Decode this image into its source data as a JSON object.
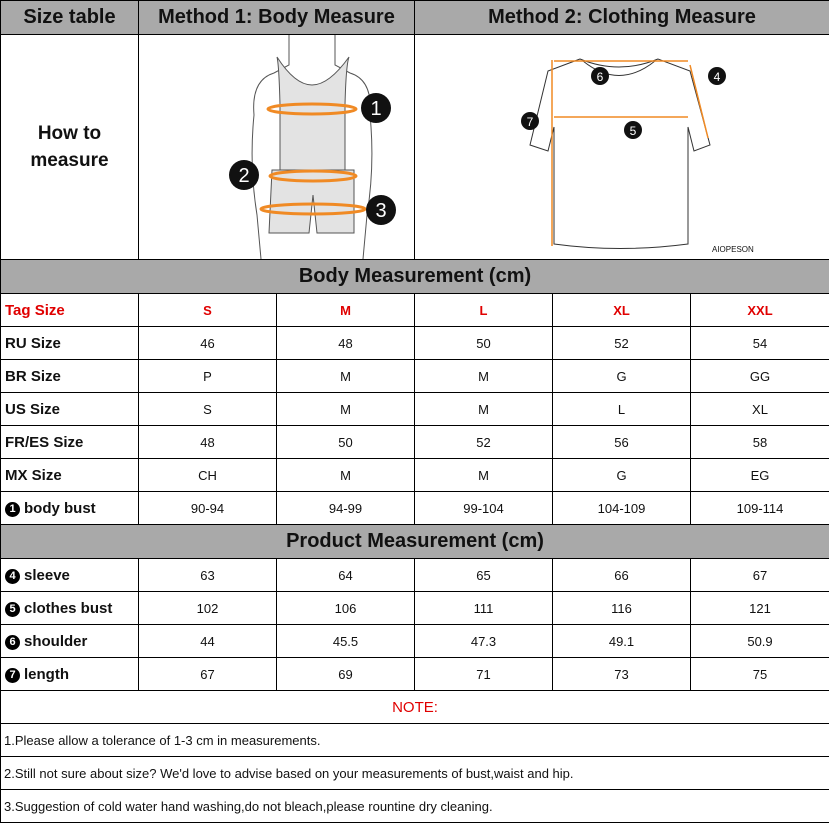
{
  "header": {
    "col0": "Size table",
    "method1": "Method 1: Body  Measure",
    "method2": "Method 2: Clothing Measure"
  },
  "how_to": {
    "label_line1": "How to",
    "label_line2": "measure",
    "body_markers": [
      "1",
      "2",
      "3"
    ],
    "clothing_markers": [
      "4",
      "5",
      "6",
      "7"
    ],
    "brand": "AIOPESON"
  },
  "colors": {
    "accent": "#f08a24",
    "header_gray": "#a9a9a9",
    "tag_red": "#e00000"
  },
  "body_section": {
    "title": "Body Measurement (cm)",
    "tag_row": {
      "label": "Tag Size",
      "values": [
        "S",
        "M",
        "L",
        "XL",
        "XXL"
      ]
    },
    "rows": [
      {
        "label": "RU Size",
        "values": [
          "46",
          "48",
          "50",
          "52",
          "54"
        ]
      },
      {
        "label": "BR Size",
        "values": [
          "P",
          "M",
          "M",
          "G",
          "GG"
        ]
      },
      {
        "label": "US Size",
        "values": [
          "S",
          "M",
          "M",
          "L",
          "XL"
        ]
      },
      {
        "label": "FR/ES Size",
        "values": [
          "48",
          "50",
          "52",
          "56",
          "58"
        ]
      },
      {
        "label": "MX Size",
        "values": [
          "CH",
          "M",
          "M",
          "G",
          "EG"
        ]
      },
      {
        "marker": "1",
        "label": "body bust",
        "values": [
          "90-94",
          "94-99",
          "99-104",
          "104-109",
          "109-114"
        ]
      }
    ]
  },
  "product_section": {
    "title": "Product Measurement (cm)",
    "rows": [
      {
        "marker": "4",
        "label": "sleeve",
        "values": [
          "63",
          "64",
          "65",
          "66",
          "67"
        ]
      },
      {
        "marker": "5",
        "label": "clothes bust",
        "values": [
          "102",
          "106",
          "111",
          "116",
          "121"
        ]
      },
      {
        "marker": "6",
        "label": "shoulder",
        "values": [
          "44",
          "45.5",
          "47.3",
          "49.1",
          "50.9"
        ]
      },
      {
        "marker": "7",
        "label": "length",
        "values": [
          "67",
          "69",
          "71",
          "73",
          "75"
        ]
      }
    ]
  },
  "notes": {
    "title": "NOTE:",
    "items": [
      "1.Please allow a tolerance of 1-3 cm in measurements.",
      "2.Still not sure about size? We'd love to advise based on your measurements of bust,waist and hip.",
      "3.Suggestion of cold water hand washing,do not bleach,please rountine dry cleaning."
    ]
  }
}
